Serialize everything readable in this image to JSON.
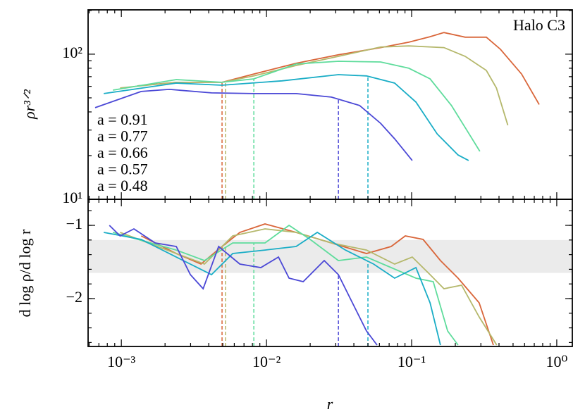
{
  "chart_data": [
    {
      "type": "line",
      "ylabel": "ρr³ᐟ²",
      "annotation": "Halo C3",
      "xlog": true,
      "ylog": true,
      "xlim": [
        0.00059,
        1.28
      ],
      "ylim": [
        10,
        202
      ],
      "yticks": [
        {
          "value": 10,
          "label": "10¹"
        },
        {
          "value": 100,
          "label": "10²"
        }
      ],
      "series": [
        {
          "name": "a = 0.91",
          "color": "#d9663a",
          "marker_x": 0.00494,
          "x": [
            0.00129,
            0.00239,
            0.00494,
            0.00818,
            0.016,
            0.0313,
            0.0611,
            0.0957,
            0.134,
            0.167,
            0.234,
            0.327,
            0.409,
            0.572,
            0.757
          ],
          "values": [
            60.5,
            64,
            64,
            73,
            86.5,
            99,
            111,
            121,
            132,
            141,
            131,
            131,
            108,
            73,
            45
          ]
        },
        {
          "name": "a = 0.77",
          "color": "#b5b86c",
          "marker_x": 0.00522,
          "x": [
            0.00098,
            0.00239,
            0.00494,
            0.00818,
            0.016,
            0.0313,
            0.0611,
            0.0957,
            0.167,
            0.234,
            0.327,
            0.384,
            0.46
          ],
          "values": [
            58.5,
            64,
            64,
            70.8,
            83.6,
            96.6,
            112,
            114,
            111,
            96.6,
            77.3,
            58.5,
            32.4
          ]
        },
        {
          "name": "a = 0.66",
          "color": "#5fdc9c",
          "marker_x": 0.00818,
          "x": [
            0.000875,
            0.00239,
            0.00494,
            0.00818,
            0.016,
            0.0313,
            0.0611,
            0.0957,
            0.134,
            0.188,
            0.249,
            0.295
          ],
          "values": [
            56.5,
            66.8,
            64,
            67.6,
            85.5,
            89.4,
            88.4,
            80,
            67.6,
            44.3,
            28.2,
            21.4
          ]
        },
        {
          "name": "a = 0.57",
          "color": "#1aadc6",
          "marker_x": 0.05,
          "x": [
            0.000756,
            0.00239,
            0.00494,
            0.0128,
            0.0313,
            0.0489,
            0.0764,
            0.107,
            0.15,
            0.209,
            0.247
          ],
          "values": [
            53.5,
            63.2,
            61.1,
            65.5,
            72.3,
            70.8,
            63.2,
            46.8,
            28.2,
            20.2,
            18.5
          ]
        },
        {
          "name": "a = 0.48",
          "color": "#4b48d6",
          "marker_x": 0.0313,
          "x": [
            0.00066,
            0.00137,
            0.00214,
            0.00418,
            0.00818,
            0.016,
            0.028,
            0.0438,
            0.0611,
            0.0764,
            0.101
          ],
          "values": [
            42.8,
            55.3,
            57.2,
            54.1,
            53.5,
            53.5,
            50.6,
            44.3,
            33.4,
            26.1,
            18.5
          ]
        }
      ]
    },
    {
      "type": "line",
      "xlabel": "r",
      "ylabel": "d log ρ/d log r",
      "xlog": true,
      "ylog": false,
      "xlim": [
        0.00059,
        1.28
      ],
      "ylim": [
        -2.654,
        -0.644
      ],
      "xticks": [
        {
          "value": 0.001,
          "label": "10⁻³"
        },
        {
          "value": 0.01,
          "label": "10⁻²"
        },
        {
          "value": 0.1,
          "label": "10⁻¹"
        },
        {
          "value": 1,
          "label": "10⁰"
        }
      ],
      "yticks": [
        {
          "value": -1,
          "label": "−1"
        },
        {
          "value": -2,
          "label": "−2"
        }
      ],
      "band": [
        -1.2,
        -1.65
      ],
      "band_color": "#ebebeb",
      "series": [
        {
          "color": "#d9663a",
          "marker_x": 0.00494,
          "x": [
            0.00137,
            0.00239,
            0.00354,
            0.00494,
            0.00655,
            0.00977,
            0.016,
            0.028,
            0.0489,
            0.0723,
            0.0904,
            0.12,
            0.158,
            0.209,
            0.292,
            0.366
          ],
          "values": [
            -1.144,
            -1.385,
            -1.529,
            -1.288,
            -1.096,
            -0.981,
            -1.096,
            -1.24,
            -1.385,
            -1.288,
            -1.144,
            -1.192,
            -1.481,
            -1.721,
            -2.058,
            -2.635
          ]
        },
        {
          "color": "#b5b86c",
          "marker_x": 0.00522,
          "x": [
            0.00098,
            0.00239,
            0.00374,
            0.00585,
            0.00977,
            0.016,
            0.028,
            0.0489,
            0.0764,
            0.101,
            0.134,
            0.167,
            0.221,
            0.292,
            0.386
          ],
          "values": [
            -1.096,
            -1.385,
            -1.529,
            -1.144,
            -1.048,
            -1.096,
            -1.24,
            -1.337,
            -1.529,
            -1.433,
            -1.673,
            -1.865,
            -1.817,
            -2.25,
            -2.635
          ]
        },
        {
          "color": "#5fdc9c",
          "marker_x": 0.00818,
          "x": [
            0.000875,
            0.00239,
            0.00374,
            0.00585,
            0.00977,
            0.0143,
            0.02,
            0.0313,
            0.0489,
            0.0723,
            0.107,
            0.141,
            0.177,
            0.209
          ],
          "values": [
            -1.096,
            -1.337,
            -1.481,
            -1.24,
            -1.24,
            -1.0,
            -1.192,
            -1.481,
            -1.433,
            -1.577,
            -1.721,
            -1.769,
            -2.442,
            -2.635
          ]
        },
        {
          "color": "#1aadc6",
          "marker_x": 0.05,
          "x": [
            0.000756,
            0.00137,
            0.00267,
            0.00418,
            0.00585,
            0.00977,
            0.016,
            0.0224,
            0.035,
            0.0547,
            0.0764,
            0.107,
            0.134,
            0.158
          ],
          "values": [
            -1.096,
            -1.192,
            -1.481,
            -1.673,
            -1.385,
            -1.337,
            -1.288,
            -1.096,
            -1.337,
            -1.529,
            -1.721,
            -1.577,
            -2.058,
            -2.635
          ]
        },
        {
          "color": "#4b48d6",
          "marker_x": 0.0313,
          "x": [
            0.000827,
            0.00098,
            0.00122,
            0.00171,
            0.00239,
            0.00299,
            0.00366,
            0.00468,
            0.00655,
            0.00914,
            0.0121,
            0.0143,
            0.0179,
            0.025,
            0.0313,
            0.0391,
            0.0489,
            0.0578
          ],
          "values": [
            -1.0,
            -1.144,
            -1.048,
            -1.24,
            -1.288,
            -1.673,
            -1.865,
            -1.288,
            -1.529,
            -1.577,
            -1.433,
            -1.721,
            -1.769,
            -1.481,
            -1.673,
            -2.058,
            -2.442,
            -2.635
          ]
        }
      ]
    }
  ]
}
